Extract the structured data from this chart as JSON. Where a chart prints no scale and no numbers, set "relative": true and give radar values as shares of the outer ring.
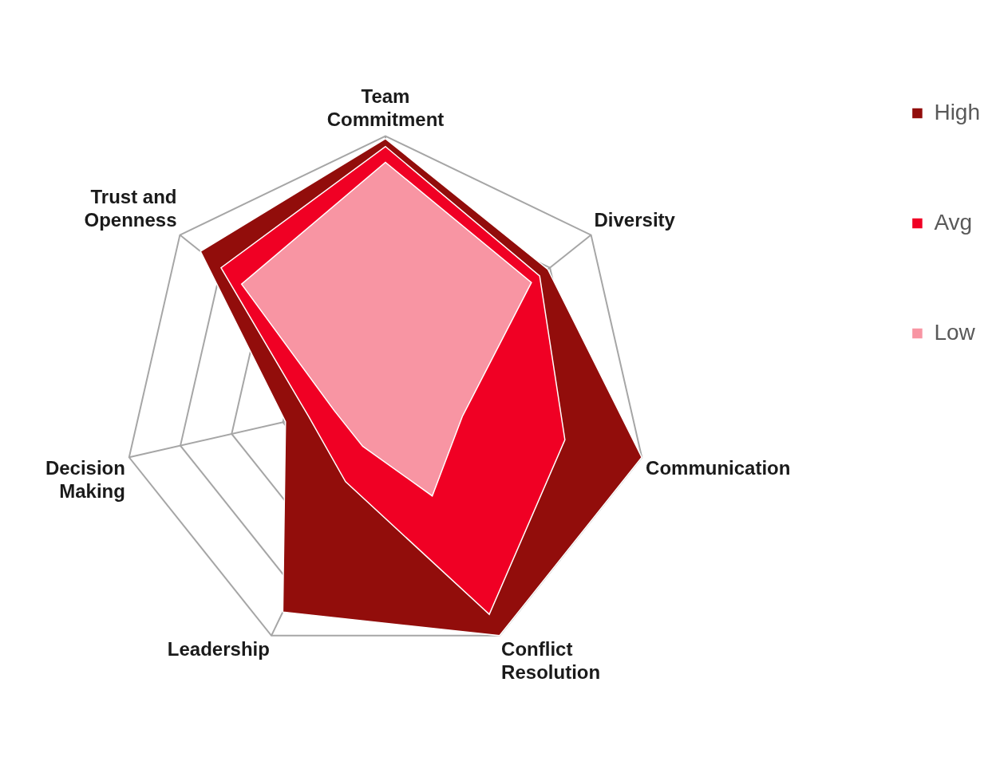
{
  "chart_data": {
    "type": "radar",
    "relative": true,
    "grid": true,
    "legend": "top right",
    "categories": [
      "Team Commitment",
      "Diversity",
      "Communication",
      "Conflict Resolution",
      "Leadership",
      "Decision Making",
      "Trust and Openness"
    ],
    "series": [
      {
        "name": "High",
        "color": "#920d0b",
        "values": [
          0.99,
          0.79,
          1.0,
          1.0,
          0.9,
          0.39,
          0.9
        ]
      },
      {
        "name": "Avg",
        "color": "#f00024",
        "values": [
          0.96,
          0.75,
          0.7,
          0.91,
          0.35,
          0.3,
          0.8
        ]
      },
      {
        "name": "Low",
        "color": "#f895a3",
        "values": [
          0.9,
          0.71,
          0.3,
          0.41,
          0.2,
          0.2,
          0.7
        ]
      }
    ]
  }
}
